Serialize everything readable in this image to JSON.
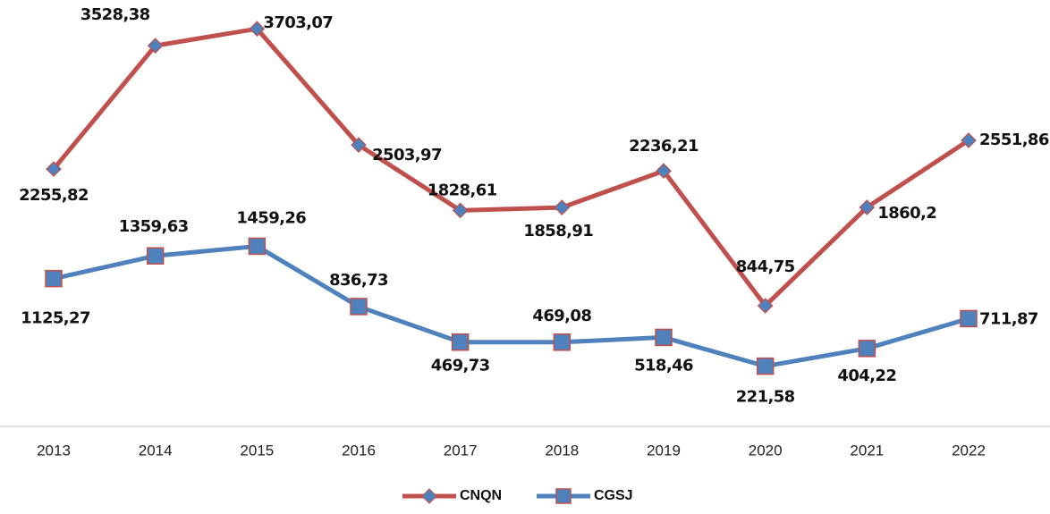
{
  "chart_data": {
    "type": "line",
    "categories": [
      "2013",
      "2014",
      "2015",
      "2016",
      "2017",
      "2018",
      "2019",
      "2020",
      "2021",
      "2022"
    ],
    "ylim": [
      -400,
      4000
    ],
    "series": [
      {
        "name": "CNQN",
        "color": "#c0504d",
        "marker_color": "#4f81bd",
        "marker": "diamond",
        "values": [
          2255.82,
          3528.38,
          3703.07,
          2503.97,
          1828.61,
          1858.91,
          2236.21,
          844.75,
          1860.2,
          2551.86
        ],
        "value_labels": [
          "2255,82",
          "3528,38",
          "3703,07",
          "2503,97",
          "1828,61",
          "1858,91",
          "2236,21",
          "844,75",
          "1860,2",
          "2551,86"
        ]
      },
      {
        "name": "CGSJ",
        "color": "#4f81bd",
        "marker_color": "#4f81bd",
        "marker": "square",
        "values": [
          1125.27,
          1359.63,
          1459.26,
          836.73,
          469.73,
          469.08,
          518.46,
          221.58,
          404.22,
          711.87
        ],
        "value_labels": [
          "1125,27",
          "1359,63",
          "1459,26",
          "836,73",
          "469,73",
          "469,08",
          "518,46",
          "221,58",
          "404,22",
          "711,87"
        ]
      }
    ]
  }
}
